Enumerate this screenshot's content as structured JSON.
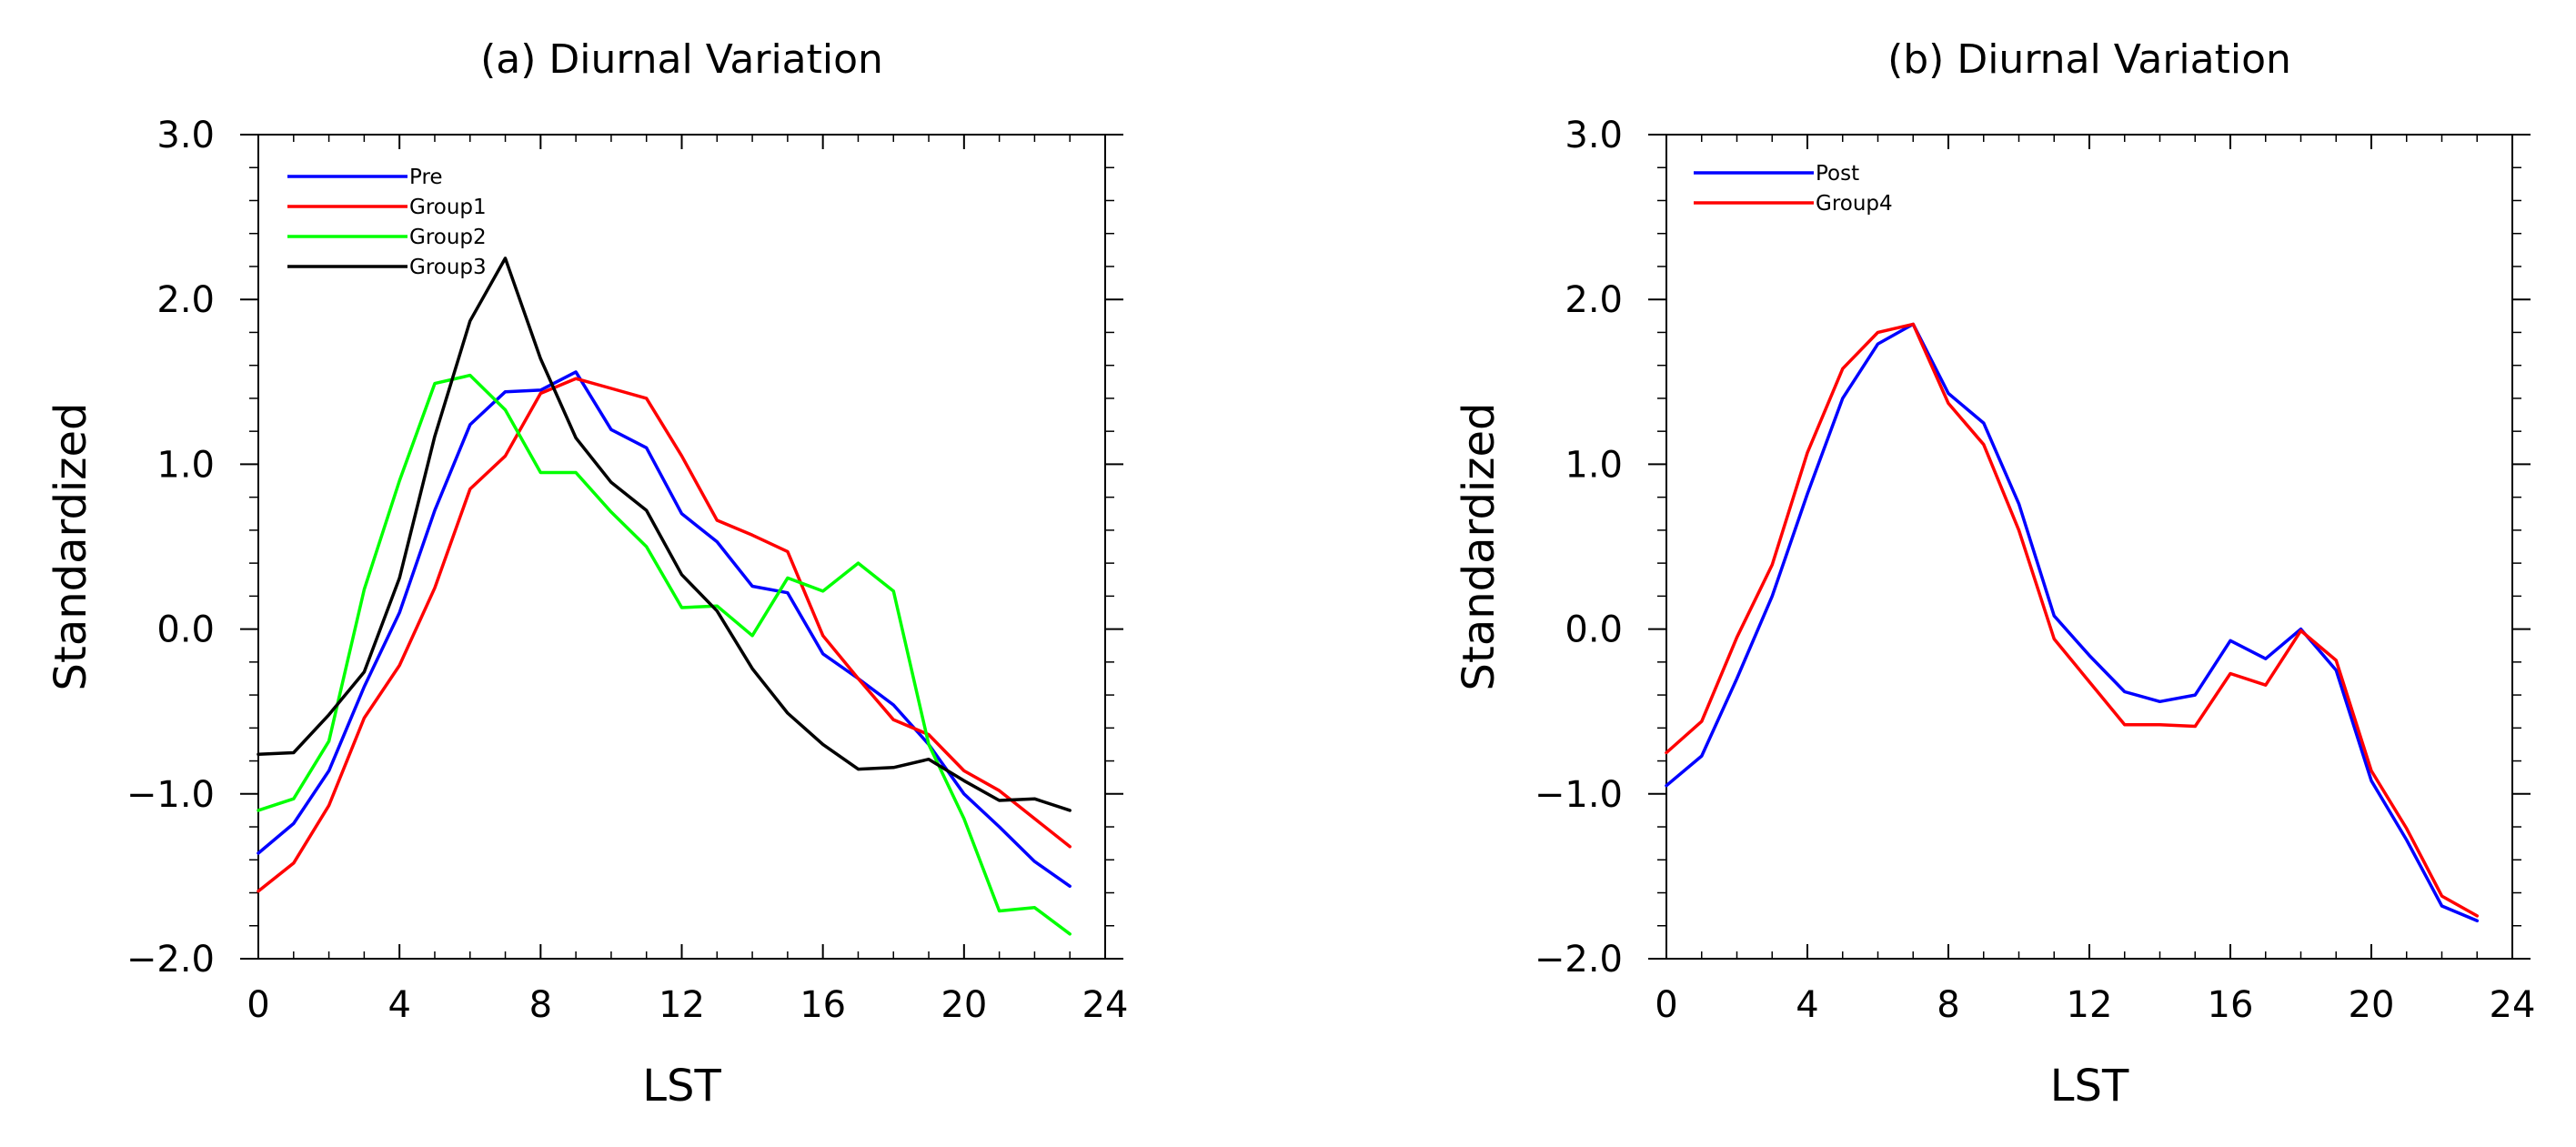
{
  "chart_data": [
    {
      "type": "line",
      "title": "(a) Diurnal Variation",
      "xlabel": "LST",
      "ylabel": "Standardized",
      "xlim": [
        0,
        24
      ],
      "ylim": [
        -2.0,
        3.0
      ],
      "xticks": [
        0,
        4,
        8,
        12,
        16,
        20,
        24
      ],
      "yticks": [
        3.0,
        2.0,
        1.0,
        0.0,
        -1.0,
        -2.0
      ],
      "xtick_labels": [
        "0",
        "4",
        "8",
        "12",
        "16",
        "20",
        "24"
      ],
      "ytick_labels": [
        "3.0",
        "2.0",
        "1.0",
        "0.0",
        "−1.0",
        "−2.0"
      ],
      "legend_position": "top-left",
      "x": [
        0,
        1,
        2,
        3,
        4,
        5,
        6,
        7,
        8,
        9,
        10,
        11,
        12,
        13,
        14,
        15,
        16,
        17,
        18,
        19,
        20,
        21,
        22,
        23
      ],
      "series": [
        {
          "name": "Pre",
          "color": "#0000ff",
          "values": [
            -1.36,
            -1.18,
            -0.86,
            -0.35,
            0.1,
            0.72,
            1.24,
            1.44,
            1.45,
            1.56,
            1.21,
            1.1,
            0.7,
            0.53,
            0.26,
            0.22,
            -0.15,
            -0.3,
            -0.46,
            -0.7,
            -1.0,
            -1.2,
            -1.41,
            -1.56
          ]
        },
        {
          "name": "Group1",
          "color": "#ff0000",
          "values": [
            -1.59,
            -1.42,
            -1.07,
            -0.54,
            -0.22,
            0.25,
            0.85,
            1.05,
            1.43,
            1.52,
            1.46,
            1.4,
            1.05,
            0.66,
            0.57,
            0.47,
            -0.04,
            -0.3,
            -0.55,
            -0.64,
            -0.86,
            -0.98,
            -1.15,
            -1.32
          ]
        },
        {
          "name": "Group2",
          "color": "#00ff00",
          "values": [
            -1.1,
            -1.03,
            -0.68,
            0.24,
            0.9,
            1.49,
            1.54,
            1.33,
            0.95,
            0.95,
            0.71,
            0.5,
            0.13,
            0.14,
            -0.04,
            0.31,
            0.23,
            0.4,
            0.23,
            -0.7,
            -1.15,
            -1.71,
            -1.69,
            -1.85
          ]
        },
        {
          "name": "Group3",
          "color": "#000000",
          "values": [
            -0.76,
            -0.75,
            -0.52,
            -0.26,
            0.31,
            1.17,
            1.87,
            2.25,
            1.64,
            1.16,
            0.89,
            0.72,
            0.33,
            0.11,
            -0.24,
            -0.51,
            -0.7,
            -0.85,
            -0.84,
            -0.79,
            -0.92,
            -1.04,
            -1.03,
            -1.1
          ]
        }
      ]
    },
    {
      "type": "line",
      "title": "(b) Diurnal Variation",
      "xlabel": "LST",
      "ylabel": "Standardized",
      "xlim": [
        0,
        24
      ],
      "ylim": [
        -2.0,
        3.0
      ],
      "xticks": [
        0,
        4,
        8,
        12,
        16,
        20,
        24
      ],
      "yticks": [
        3.0,
        2.0,
        1.0,
        0.0,
        -1.0,
        -2.0
      ],
      "xtick_labels": [
        "0",
        "4",
        "8",
        "12",
        "16",
        "20",
        "24"
      ],
      "ytick_labels": [
        "3.0",
        "2.0",
        "1.0",
        "0.0",
        "−1.0",
        "−2.0"
      ],
      "legend_position": "top-left",
      "x": [
        0,
        1,
        2,
        3,
        4,
        5,
        6,
        7,
        8,
        9,
        10,
        11,
        12,
        13,
        14,
        15,
        16,
        17,
        18,
        19,
        20,
        21,
        22,
        23
      ],
      "series": [
        {
          "name": "Post",
          "color": "#0000ff",
          "values": [
            -0.95,
            -0.77,
            -0.3,
            0.2,
            0.82,
            1.4,
            1.73,
            1.85,
            1.43,
            1.25,
            0.76,
            0.08,
            -0.16,
            -0.38,
            -0.44,
            -0.4,
            -0.07,
            -0.18,
            0.0,
            -0.25,
            -0.92,
            -1.28,
            -1.68,
            -1.77
          ]
        },
        {
          "name": "Group4",
          "color": "#ff0000",
          "values": [
            -0.75,
            -0.56,
            -0.05,
            0.39,
            1.07,
            1.58,
            1.8,
            1.85,
            1.37,
            1.12,
            0.6,
            -0.06,
            -0.32,
            -0.58,
            -0.58,
            -0.59,
            -0.27,
            -0.34,
            -0.01,
            -0.19,
            -0.86,
            -1.21,
            -1.62,
            -1.74
          ]
        }
      ]
    }
  ]
}
